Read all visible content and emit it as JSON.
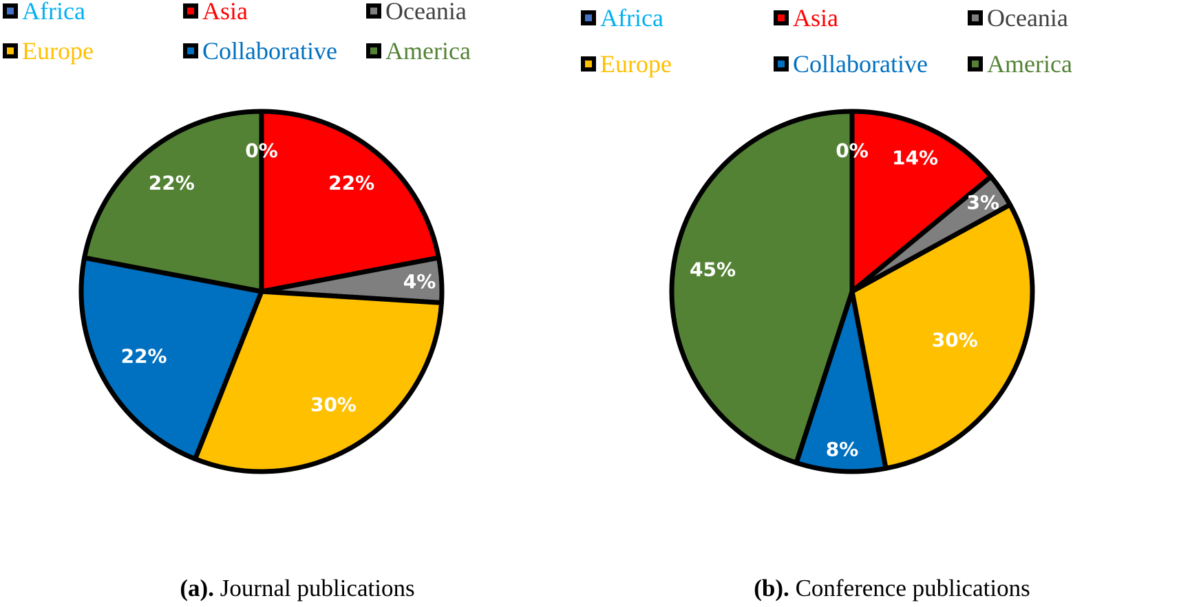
{
  "legend": [
    {
      "label": "Africa",
      "swatch": "#4472c4",
      "text_color": "#00b0f0"
    },
    {
      "label": "Asia",
      "swatch": "#ff0000",
      "text_color": "#ff0000"
    },
    {
      "label": "Oceania",
      "swatch": "#7f7f7f",
      "text_color": "#404040"
    },
    {
      "label": "Europe",
      "swatch": "#ffc000",
      "text_color": "#ffc000"
    },
    {
      "label": "Collaborative",
      "swatch": "#0070c0",
      "text_color": "#0070c0"
    },
    {
      "label": "America",
      "swatch": "#548235",
      "text_color": "#548235"
    }
  ],
  "captions": {
    "a_bold": "(a).",
    "a_text": " Journal publications",
    "b_bold": "(b).",
    "b_text": " Conference publications"
  },
  "chart_data": [
    {
      "type": "pie",
      "title": "",
      "categories": [
        "Africa",
        "Asia",
        "Oceania",
        "Europe",
        "Collaborative",
        "America"
      ],
      "values": [
        0,
        22,
        4,
        30,
        22,
        22
      ],
      "labels": [
        "0%",
        "22%",
        "4%",
        "30%",
        "22%",
        "22%"
      ],
      "colors": [
        "#4472c4",
        "#ff0000",
        "#7f7f7f",
        "#ffc000",
        "#0070c0",
        "#548235"
      ],
      "start": "12 o'clock",
      "direction": "clockwise",
      "legend_position": "top"
    },
    {
      "type": "pie",
      "title": "",
      "categories": [
        "Africa",
        "Asia",
        "Oceania",
        "Europe",
        "Collaborative",
        "America"
      ],
      "values": [
        0,
        14,
        3,
        30,
        8,
        45
      ],
      "labels": [
        "0%",
        "14%",
        "3%",
        "30%",
        "8%",
        "45%"
      ],
      "colors": [
        "#4472c4",
        "#ff0000",
        "#7f7f7f",
        "#ffc000",
        "#0070c0",
        "#548235"
      ],
      "start": "12 o'clock",
      "direction": "clockwise",
      "legend_position": "top"
    }
  ]
}
